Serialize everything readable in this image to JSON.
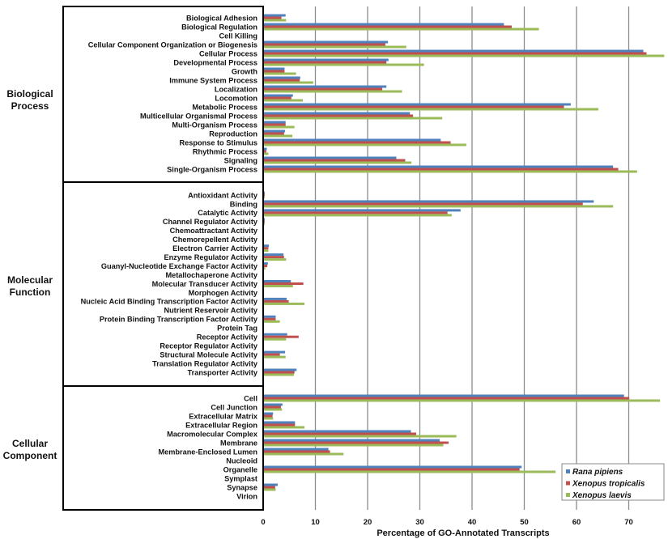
{
  "chart_data": {
    "type": "bar",
    "orientation": "horizontal",
    "xlabel": "Percentage of GO-Annotated Transcripts",
    "xlim": [
      0,
      77
    ],
    "xticks": [
      "0",
      "10",
      "20",
      "30",
      "40",
      "50",
      "60",
      "70"
    ],
    "grid": "vertical",
    "legend_position": "bottom-right",
    "colors": {
      "Rana pipiens": "#4f81bd",
      "Xenopus tropicalis": "#c0504d",
      "Xenopus laevis": "#9bbb59"
    },
    "series_names": [
      "Rana pipiens",
      "Xenopus tropicalis",
      "Xenopus laevis"
    ],
    "groups": [
      {
        "name": "Biological Process",
        "name_lines": [
          "Biological",
          "Process"
        ],
        "categories": [
          "Biological Adhesion",
          "Biological Regulation",
          "Cell Killing",
          "Cellular Component Organization  or Biogenesis",
          "Cellular Process",
          "Developmental Process",
          "Growth",
          "Immune System Process",
          "Localization",
          "Locomotion",
          "Metabolic Process",
          "Multicellular Organismal Process",
          "Multi-Organism  Process",
          "Reproduction",
          "Response to Stimulus",
          "Rhythmic Process",
          "Signaling",
          "Single-Organism Process"
        ],
        "series": [
          {
            "name": "Rana pipiens",
            "values": [
              4.3,
              46.1,
              0.1,
              23.9,
              72.8,
              24.0,
              4.1,
              7.1,
              23.6,
              5.7,
              58.9,
              28.1,
              4.3,
              4.2,
              34.0,
              0.7,
              25.5,
              67.0
            ]
          },
          {
            "name": "Xenopus tropicalis",
            "values": [
              3.5,
              47.6,
              0.1,
              23.4,
              73.4,
              23.6,
              4.1,
              7.0,
              22.8,
              5.4,
              57.6,
              28.7,
              4.3,
              4.0,
              35.9,
              0.6,
              27.2,
              68.0
            ]
          },
          {
            "name": "Xenopus laevis",
            "values": [
              4.4,
              52.8,
              0.1,
              27.4,
              76.8,
              30.8,
              6.3,
              9.6,
              26.6,
              7.6,
              64.2,
              34.3,
              6.0,
              5.6,
              38.9,
              1.0,
              28.4,
              71.6
            ]
          }
        ]
      },
      {
        "name": "Molecular Function",
        "name_lines": [
          "Molecular",
          "Function"
        ],
        "categories": [
          "Antioxidant Activity",
          "Binding",
          "Catalytic Activity",
          "Channel Regulator Activity",
          "Chemoattractant Activity",
          "Chemorepellent Activity",
          "Electron Carrier Activity",
          "Enzyme Regulator Activity",
          "Guanyl-Nucleotide Exchange Factor Activity",
          "Metallochaperone Activity",
          "Molecular Transducer Activity",
          "Morphogen Activity",
          "Nucleic Acid Binding Transcription Factor Activity",
          "Nutrient Reservoir Activity",
          "Protein Binding Transcription Factor Activity",
          "Protein Tag",
          "Receptor Activity",
          "Receptor Regulator Activity",
          "Structural Molecule Activity",
          "Translation Regulator Activity",
          "Transporter Activity"
        ],
        "series": [
          {
            "name": "Rana pipiens",
            "values": [
              0.3,
              63.3,
              37.8,
              0.3,
              0,
              0,
              1.1,
              3.9,
              0.9,
              0,
              5.3,
              0.05,
              4.5,
              0,
              2.4,
              0,
              4.6,
              0.1,
              4.2,
              0.05,
              6.4
            ]
          },
          {
            "name": "Xenopus tropicalis",
            "values": [
              0.3,
              61.2,
              35.3,
              0.3,
              0,
              0,
              1.0,
              4.0,
              0.8,
              0,
              7.7,
              0.05,
              4.9,
              0,
              2.4,
              0,
              6.8,
              0.1,
              3.2,
              0.05,
              6.0
            ]
          },
          {
            "name": "Xenopus laevis",
            "values": [
              0.3,
              67.0,
              36.1,
              0.3,
              0,
              0,
              1.0,
              4.4,
              0.4,
              0,
              5.7,
              0.05,
              7.9,
              0,
              3.2,
              0,
              4.4,
              0.1,
              4.3,
              0.05,
              5.9
            ]
          }
        ]
      },
      {
        "name": "Cellular Component",
        "name_lines": [
          "Cellular",
          "Component"
        ],
        "categories": [
          "Cell",
          "Cell Junction",
          "Extracellular Matrix",
          "Extracellular Region",
          "Macromolecular Complex",
          "Membrane",
          "Membrane-Enclosed Lumen",
          "Nucleoid",
          "Organelle",
          "Symplast",
          "Synapse",
          "Virion"
        ],
        "series": [
          {
            "name": "Rana pipiens",
            "values": [
              69.1,
              3.7,
              1.9,
              6.1,
              28.3,
              33.8,
              12.5,
              0.1,
              49.5,
              0,
              2.8,
              0
            ]
          },
          {
            "name": "Xenopus tropicalis",
            "values": [
              70.1,
              3.4,
              1.8,
              6.1,
              29.3,
              35.5,
              12.8,
              0.1,
              49.1,
              0,
              2.3,
              0
            ]
          },
          {
            "name": "Xenopus laevis",
            "values": [
              76.0,
              3.6,
              1.9,
              7.9,
              37.0,
              34.5,
              15.4,
              0.1,
              56.0,
              0,
              2.4,
              0
            ]
          }
        ]
      }
    ]
  }
}
